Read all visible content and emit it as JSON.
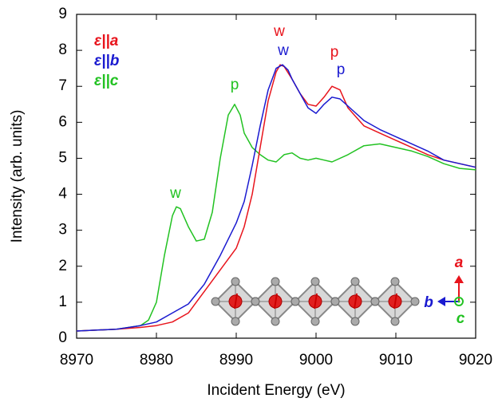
{
  "chart_data": {
    "type": "line",
    "xlabel": "Incident Energy (eV)",
    "ylabel": "Intensity (arb. units)",
    "xlim": [
      8970,
      9020
    ],
    "ylim": [
      0,
      9
    ],
    "xticks": [
      8970,
      8980,
      8990,
      9000,
      9010,
      9020
    ],
    "yticks": [
      0,
      1,
      2,
      3,
      4,
      5,
      6,
      7,
      8,
      9
    ],
    "grid": false,
    "legend": "upper left",
    "series": [
      {
        "name": "ε||a",
        "color": "#e8141c",
        "x": [
          8970,
          8975,
          8978,
          8980,
          8982,
          8984,
          8986,
          8988,
          8990,
          8991,
          8992,
          8993,
          8994,
          8995,
          8995.5,
          8996,
          8997,
          8998,
          8999,
          9000,
          9001,
          9002,
          9003,
          9004,
          9006,
          9008,
          9010,
          9012,
          9014,
          9016,
          9018,
          9020
        ],
        "values": [
          0.2,
          0.25,
          0.3,
          0.35,
          0.45,
          0.7,
          1.3,
          1.9,
          2.5,
          3.1,
          4.0,
          5.3,
          6.6,
          7.4,
          7.6,
          7.55,
          7.2,
          6.8,
          6.5,
          6.45,
          6.7,
          7.0,
          6.9,
          6.4,
          5.9,
          5.7,
          5.5,
          5.3,
          5.1,
          4.95,
          4.85,
          4.75
        ]
      },
      {
        "name": "ε||b",
        "color": "#1a1ad0",
        "x": [
          8970,
          8975,
          8978,
          8980,
          8982,
          8984,
          8986,
          8988,
          8990,
          8991,
          8992,
          8993,
          8994,
          8995,
          8995.8,
          8996.5,
          8997,
          8998,
          8999,
          9000,
          9001,
          9002,
          9003,
          9004,
          9006,
          9008,
          9010,
          9012,
          9014,
          9016,
          9018,
          9020
        ],
        "values": [
          0.2,
          0.25,
          0.35,
          0.45,
          0.7,
          0.95,
          1.5,
          2.3,
          3.2,
          3.8,
          4.8,
          5.9,
          6.9,
          7.5,
          7.6,
          7.45,
          7.2,
          6.8,
          6.4,
          6.25,
          6.5,
          6.7,
          6.65,
          6.45,
          6.05,
          5.8,
          5.6,
          5.4,
          5.2,
          4.95,
          4.85,
          4.75
        ]
      },
      {
        "name": "ε||c",
        "color": "#22c222",
        "x": [
          8970,
          8975,
          8978,
          8979,
          8980,
          8981,
          8982,
          8982.5,
          8983,
          8984,
          8985,
          8986,
          8987,
          8988,
          8989,
          8989.8,
          8990.5,
          8991,
          8992,
          8993,
          8994,
          8995,
          8996,
          8997,
          8998,
          8999,
          9000,
          9001,
          9002,
          9004,
          9006,
          9008,
          9010,
          9012,
          9014,
          9016,
          9018,
          9020
        ],
        "values": [
          0.2,
          0.25,
          0.35,
          0.5,
          1.0,
          2.3,
          3.4,
          3.65,
          3.6,
          3.1,
          2.7,
          2.75,
          3.5,
          5.0,
          6.2,
          6.5,
          6.2,
          5.7,
          5.3,
          5.1,
          4.95,
          4.9,
          5.1,
          5.15,
          5.0,
          4.95,
          5.0,
          4.95,
          4.9,
          5.1,
          5.35,
          5.4,
          5.3,
          5.2,
          5.05,
          4.85,
          4.72,
          4.68
        ]
      }
    ],
    "annotations": [
      {
        "text": "w",
        "color": "#22c222"
      },
      {
        "text": "p",
        "color": "#22c222"
      },
      {
        "text": "w",
        "color": "#e8141c"
      },
      {
        "text": "w",
        "color": "#1a1ad0"
      },
      {
        "text": "p",
        "color": "#e8141c"
      },
      {
        "text": "p",
        "color": "#1a1ad0"
      }
    ],
    "inset_labels": [
      "a",
      "b",
      "c"
    ]
  }
}
